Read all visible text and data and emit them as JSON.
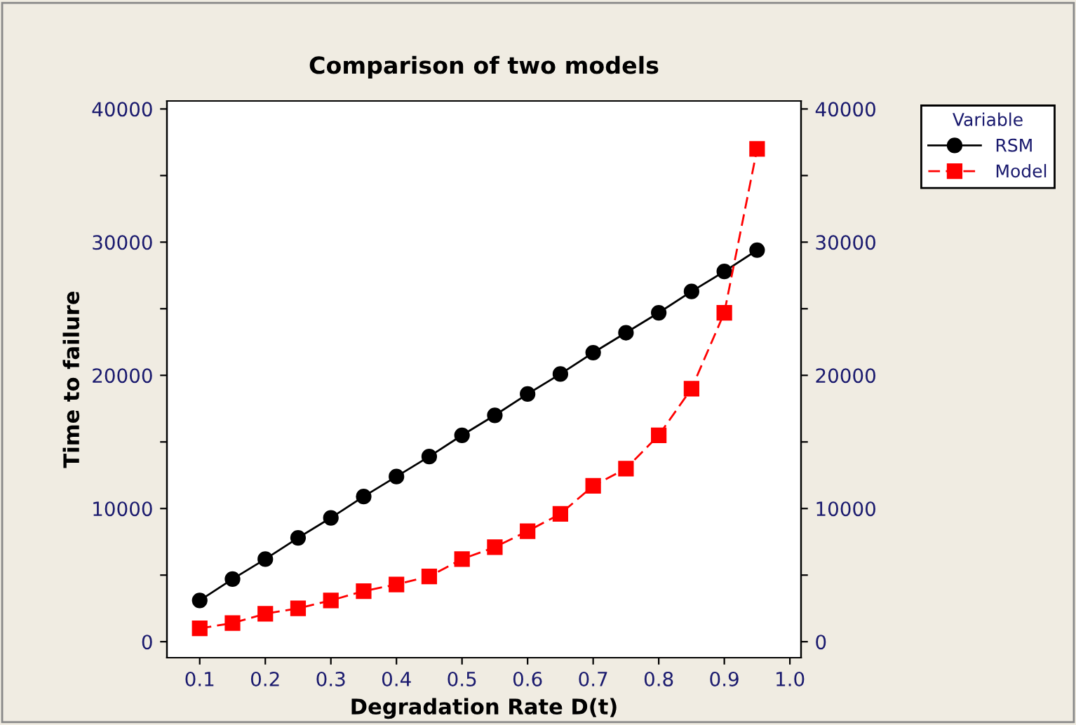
{
  "chart_data": {
    "type": "line",
    "title": "Comparison of two models",
    "xlabel": "Degradation Rate D(t)",
    "ylabel": "Time to failure",
    "legend_title": "Variable",
    "legend": "top right",
    "x": [
      0.1,
      0.15,
      0.2,
      0.25,
      0.3,
      0.35,
      0.4,
      0.45,
      0.5,
      0.55,
      0.6,
      0.65,
      0.7,
      0.75,
      0.8,
      0.85,
      0.9,
      0.95
    ],
    "series": [
      {
        "name": "RSM",
        "color": "#000000",
        "marker": "circle",
        "line_style": "solid",
        "values": [
          3100,
          4700,
          6200,
          7800,
          9300,
          10900,
          12400,
          13900,
          15500,
          17000,
          18600,
          20100,
          21700,
          23200,
          24700,
          26300,
          27800,
          29400
        ]
      },
      {
        "name": "Model",
        "color": "#ff0000",
        "marker": "square",
        "line_style": "dashed",
        "values": [
          1000,
          1400,
          2100,
          2500,
          3100,
          3800,
          4300,
          4900,
          6200,
          7100,
          8300,
          9600,
          11700,
          13000,
          15500,
          19000,
          24700,
          37000
        ]
      }
    ],
    "xlim": [
      0.05,
      1.017
    ],
    "xticks": [
      0.1,
      0.2,
      0.3,
      0.4,
      0.5,
      0.6,
      0.7,
      0.8,
      0.9,
      {
        "value": 1,
        "label": "1.0"
      }
    ],
    "ylim": [
      -1200,
      40600
    ],
    "yticks": [
      0,
      {
        "value": 5000,
        "label": null
      },
      10000,
      {
        "value": 15000,
        "label": null
      },
      20000,
      {
        "value": 25000,
        "label": null
      },
      30000,
      {
        "value": 35000,
        "label": null
      },
      40000
    ],
    "y2lim": [
      -1200,
      40600
    ],
    "y2ticks": [
      0,
      {
        "value": 5000,
        "label": null
      },
      10000,
      {
        "value": 15000,
        "label": null
      },
      20000,
      {
        "value": 25000,
        "label": null
      },
      30000,
      {
        "value": 35000,
        "label": null
      },
      40000
    ],
    "grid": false
  }
}
